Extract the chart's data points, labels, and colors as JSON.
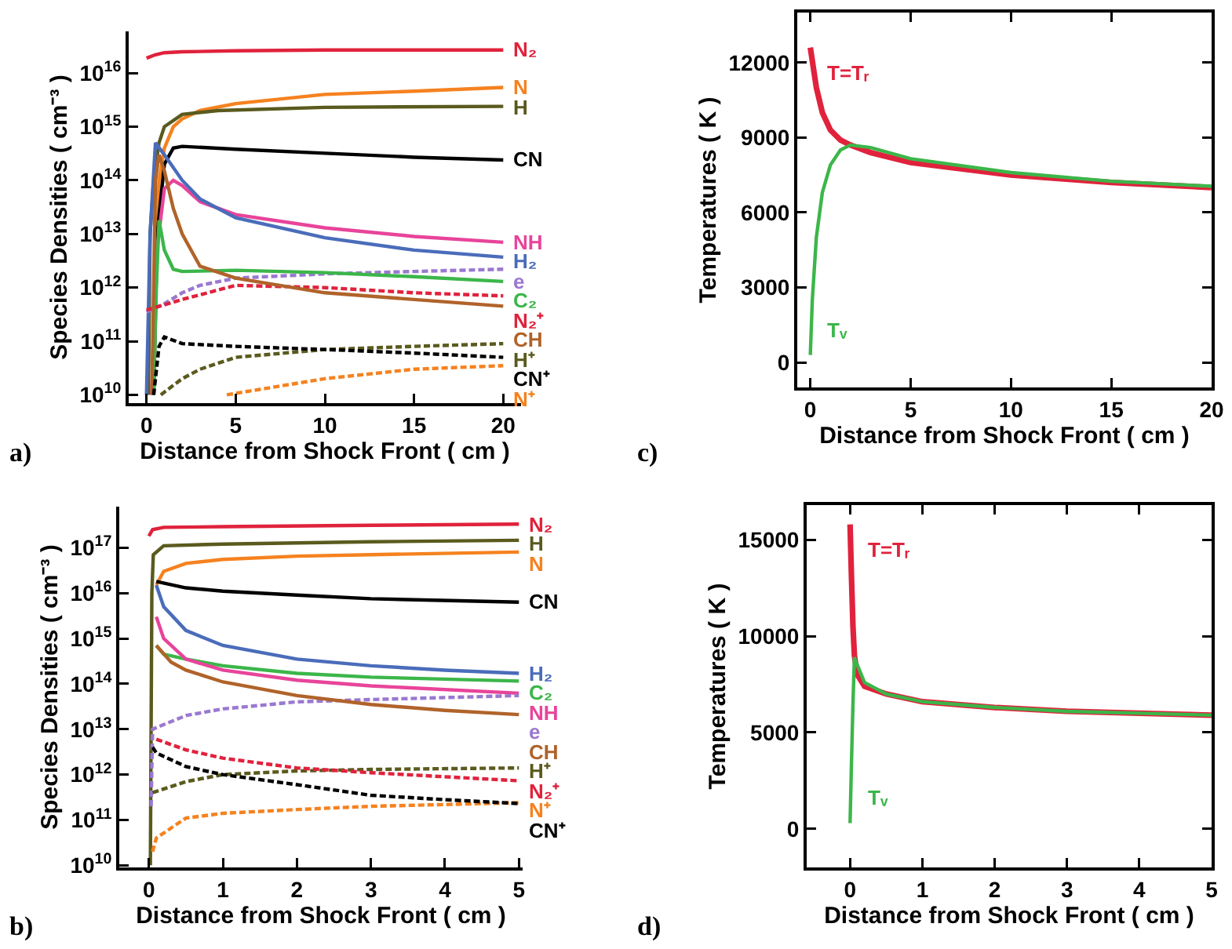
{
  "chart_data": [
    {
      "type": "line",
      "log": true,
      "marker": "none",
      "legend": "right",
      "xlabel": "Distance from Shock Front ( cm )",
      "ylabel": "Species Densities ( cm⁻³ )",
      "annotations": [
        "a)"
      ],
      "xlim": [
        -1,
        21
      ],
      "xticks": [
        0,
        5,
        10,
        15,
        20
      ],
      "ylim": [
        7000000000.0,
        6e+16
      ],
      "yticks": [
        {
          "value": 10000000000.0,
          "label": "10$^{10}$"
        },
        {
          "value": 100000000000.0,
          "label": "10$^{11}$"
        },
        {
          "value": 1000000000000.0,
          "label": "10$^{12}$"
        },
        {
          "value": 10000000000000.0,
          "label": "10$^{13}$"
        },
        {
          "value": 100000000000000.0,
          "label": "10$^{14}$"
        },
        {
          "value": 1000000000000000.0,
          "label": "10$^{15}$"
        },
        {
          "value": 1e+16,
          "label": "10$^{16}$"
        }
      ],
      "series": [
        {
          "name": "N₂",
          "color": "#e0223c",
          "line_style": "solid",
          "x": [
            0,
            0.5,
            1,
            2,
            5,
            10,
            20
          ],
          "values": [
            1.9e+16,
            2.2e+16,
            2.4e+16,
            2.5e+16,
            2.6e+16,
            2.7e+16,
            2.7e+16
          ]
        },
        {
          "name": "N",
          "color": "#f5821f",
          "line_style": "solid",
          "x": [
            0.3,
            0.5,
            0.7,
            1,
            1.5,
            2,
            3,
            5,
            10,
            15,
            20
          ],
          "values": [
            10000000000.0,
            1000000000000.0,
            100000000000000.0,
            400000000000000.0,
            1000000000000000.0,
            1400000000000000.0,
            2000000000000000.0,
            2700000000000000.0,
            4000000000000000.0,
            4600000000000000.0,
            5400000000000000.0
          ]
        },
        {
          "name": "H",
          "color": "#5a5a1e",
          "line_style": "solid",
          "x": [
            0.1,
            0.2,
            0.4,
            0.7,
            1,
            2,
            4,
            10,
            20
          ],
          "values": [
            10000000000.0,
            10000000000000.0,
            100000000000000.0,
            500000000000000.0,
            1000000000000000.0,
            1700000000000000.0,
            2000000000000000.0,
            2300000000000000.0,
            2400000000000000.0
          ]
        },
        {
          "name": "CN",
          "color": "#000000",
          "line_style": "solid",
          "x": [
            0.4,
            0.6,
            1,
            1.5,
            2,
            5,
            10,
            15,
            20
          ],
          "values": [
            10000000000.0,
            10000000000000.0,
            200000000000000.0,
            400000000000000.0,
            430000000000000.0,
            380000000000000.0,
            320000000000000.0,
            270000000000000.0,
            240000000000000.0
          ]
        },
        {
          "name": "NH",
          "color": "#e8449a",
          "line_style": "solid",
          "x": [
            0.3,
            0.5,
            1,
            1.5,
            2,
            3,
            5,
            10,
            15,
            20
          ],
          "values": [
            10000000000.0,
            3000000000000.0,
            70000000000000.0,
            100000000000000.0,
            80000000000000.0,
            40000000000000.0,
            23000000000000.0,
            13000000000000.0,
            9000000000000.0,
            7000000000000.0
          ]
        },
        {
          "name": "H₂",
          "color": "#4a6cba",
          "line_style": "solid",
          "x": [
            0,
            0.2,
            0.5,
            1,
            2,
            3,
            5,
            10,
            15,
            20
          ],
          "values": [
            10000000000.0,
            10000000000000.0,
            500000000000000.0,
            300000000000000.0,
            100000000000000.0,
            45000000000000.0,
            20000000000000.0,
            8500000000000.0,
            5000000000000.0,
            3700000000000.0
          ]
        },
        {
          "name": "e",
          "color": "#9a78d0",
          "line_style": "dashed",
          "x": [
            0,
            1,
            2,
            3,
            5,
            10,
            15,
            20
          ],
          "values": [
            350000000000.0,
            500000000000.0,
            800000000000.0,
            1100000000000.0,
            1500000000000.0,
            1800000000000.0,
            2000000000000.0,
            2200000000000.0
          ]
        },
        {
          "name": "C₂",
          "color": "#3cb64a",
          "line_style": "solid",
          "x": [
            0.4,
            0.55,
            0.7,
            1,
            1.5,
            2,
            5,
            10,
            15,
            20
          ],
          "values": [
            10000000000.0,
            1000000000000.0,
            18000000000000.0,
            5000000000000.0,
            2200000000000.0,
            2000000000000.0,
            2100000000000.0,
            1900000000000.0,
            1600000000000.0,
            1300000000000.0
          ]
        },
        {
          "name": "N₂⁺",
          "color": "#e0223c",
          "line_style": "dashed",
          "x": [
            0,
            2,
            5,
            10,
            15,
            20
          ],
          "values": [
            380000000000.0,
            600000000000.0,
            1100000000000.0,
            1000000000000.0,
            800000000000.0,
            700000000000.0
          ]
        },
        {
          "name": "CH",
          "color": "#b0632a",
          "line_style": "solid",
          "x": [
            0.3,
            0.5,
            0.7,
            1,
            1.5,
            2,
            3,
            5,
            10,
            15,
            20
          ],
          "values": [
            10000000000.0,
            100000000000000.0,
            300000000000000.0,
            150000000000000.0,
            30000000000000.0,
            10000000000000.0,
            2500000000000.0,
            1500000000000.0,
            800000000000.0,
            600000000000.0,
            450000000000.0
          ]
        },
        {
          "name": "H⁺",
          "color": "#5a5a1e",
          "line_style": "dashed",
          "x": [
            0.8,
            2,
            3,
            5,
            10,
            15,
            20
          ],
          "values": [
            10000000000.0,
            20000000000.0,
            30000000000.0,
            50000000000.0,
            70000000000.0,
            80000000000.0,
            90000000000.0
          ]
        },
        {
          "name": "CN⁺",
          "color": "#000000",
          "line_style": "dashed",
          "x": [
            0.4,
            0.7,
            1,
            2,
            5,
            10,
            15,
            20
          ],
          "values": [
            10000000000.0,
            80000000000.0,
            120000000000.0,
            90000000000.0,
            80000000000.0,
            70000000000.0,
            60000000000.0,
            50000000000.0
          ]
        },
        {
          "name": "N⁺",
          "color": "#f5821f",
          "line_style": "dashed",
          "x": [
            4.5,
            10,
            15,
            20
          ],
          "values": [
            10000000000.0,
            20000000000.0,
            30000000000.0,
            35000000000.0
          ]
        }
      ]
    },
    {
      "type": "line",
      "log": true,
      "marker": "none",
      "legend": "right",
      "xlabel": "Distance from Shock Front ( cm )",
      "ylabel": "Species Densities ( cm⁻³ )",
      "annotations": [
        "b)"
      ],
      "xlim": [
        -0.4,
        5.05
      ],
      "xticks": [
        0,
        1,
        2,
        3,
        4,
        5
      ],
      "ylim": [
        9000000000.0,
        8e+17
      ],
      "yticks": [
        {
          "value": 10000000000.0,
          "label": "10$^{10}$"
        },
        {
          "value": 100000000000.0,
          "label": "10$^{11}$"
        },
        {
          "value": 1000000000000.0,
          "label": "10$^{12}$"
        },
        {
          "value": 10000000000000.0,
          "label": "10$^{13}$"
        },
        {
          "value": 100000000000000.0,
          "label": "10$^{14}$"
        },
        {
          "value": 1000000000000000.0,
          "label": "10$^{15}$"
        },
        {
          "value": 1e+16,
          "label": "10$^{16}$"
        },
        {
          "value": 1e+17,
          "label": "10$^{17}$"
        }
      ],
      "series": [
        {
          "name": "N₂",
          "color": "#e0223c",
          "line_style": "solid",
          "x": [
            0,
            0.05,
            0.2,
            1,
            3,
            5
          ],
          "values": [
            1.8e+17,
            2.5e+17,
            2.8e+17,
            2.9e+17,
            3.1e+17,
            3.3e+17
          ]
        },
        {
          "name": "H",
          "color": "#5a5a1e",
          "line_style": "solid",
          "x": [
            0.02,
            0.04,
            0.06,
            0.2,
            1,
            3,
            5
          ],
          "values": [
            10000000000.0,
            1e+16,
            7e+16,
            1.1e+17,
            1.2e+17,
            1.35e+17,
            1.45e+17
          ]
        },
        {
          "name": "N",
          "color": "#f5821f",
          "line_style": "solid",
          "x": [
            0.1,
            0.2,
            0.5,
            1,
            2,
            3,
            5
          ],
          "values": [
            1.5e+16,
            3e+16,
            4.5e+16,
            5.5e+16,
            6.5e+16,
            7e+16,
            8e+16
          ]
        },
        {
          "name": "CN",
          "color": "#000000",
          "line_style": "solid",
          "x": [
            0.1,
            0.5,
            1,
            2,
            3,
            5
          ],
          "values": [
            1.8e+16,
            1.3e+16,
            1.1e+16,
            9000000000000000.0,
            7500000000000000.0,
            6300000000000000.0
          ]
        },
        {
          "name": "H₂",
          "color": "#4a6cba",
          "line_style": "solid",
          "x": [
            0.1,
            0.2,
            0.5,
            1,
            2,
            3,
            4,
            5
          ],
          "values": [
            1.5e+16,
            5000000000000000.0,
            1500000000000000.0,
            700000000000000.0,
            350000000000000.0,
            250000000000000.0,
            200000000000000.0,
            170000000000000.0
          ]
        },
        {
          "name": "C₂",
          "color": "#3cb64a",
          "line_style": "solid",
          "x": [
            0.1,
            0.2,
            0.5,
            1,
            2,
            3,
            5
          ],
          "values": [
            700000000000000.0,
            450000000000000.0,
            350000000000000.0,
            250000000000000.0,
            170000000000000.0,
            140000000000000.0,
            115000000000000.0
          ]
        },
        {
          "name": "NH",
          "color": "#e8449a",
          "line_style": "solid",
          "x": [
            0.1,
            0.2,
            0.5,
            1,
            2,
            3,
            5
          ],
          "values": [
            3000000000000000.0,
            1000000000000000.0,
            350000000000000.0,
            200000000000000.0,
            120000000000000.0,
            90000000000000.0,
            62000000000000.0
          ]
        },
        {
          "name": "e",
          "color": "#9a78d0",
          "line_style": "dashed",
          "x": [
            0.03,
            0.05,
            0.5,
            1,
            2,
            3,
            5
          ],
          "values": [
            200000000000.0,
            10000000000000.0,
            20000000000000.0,
            28000000000000.0,
            40000000000000.0,
            45000000000000.0,
            55000000000000.0
          ]
        },
        {
          "name": "CH",
          "color": "#b0632a",
          "line_style": "solid",
          "x": [
            0.1,
            0.3,
            0.5,
            1,
            2,
            3,
            4,
            5
          ],
          "values": [
            700000000000000.0,
            300000000000000.0,
            200000000000000.0,
            110000000000000.0,
            55000000000000.0,
            35000000000000.0,
            26000000000000.0,
            21000000000000.0
          ]
        },
        {
          "name": "H⁺",
          "color": "#5a5a1e",
          "line_style": "dashed",
          "x": [
            0.05,
            0.5,
            1,
            2,
            3,
            5
          ],
          "values": [
            400000000000.0,
            700000000000.0,
            1000000000000.0,
            1200000000000.0,
            1300000000000.0,
            1400000000000.0
          ]
        },
        {
          "name": "N₂⁺",
          "color": "#e0223c",
          "line_style": "dashed",
          "x": [
            0.1,
            0.5,
            1,
            2,
            3,
            5
          ],
          "values": [
            6000000000000.0,
            3500000000000.0,
            2300000000000.0,
            1400000000000.0,
            1100000000000.0,
            730000000000.0
          ]
        },
        {
          "name": "N⁺",
          "color": "#f5821f",
          "line_style": "dashed",
          "x": [
            0.05,
            0.1,
            0.5,
            1,
            2,
            3,
            5
          ],
          "values": [
            20000000000.0,
            40000000000.0,
            110000000000.0,
            140000000000.0,
            170000000000.0,
            200000000000.0,
            240000000000.0
          ]
        },
        {
          "name": "CN⁺",
          "color": "#000000",
          "line_style": "dashed",
          "x": [
            0.05,
            0.1,
            0.5,
            1,
            2,
            3,
            4,
            5
          ],
          "values": [
            4000000000000.0,
            3000000000000.0,
            1500000000000.0,
            1000000000000.0,
            600000000000.0,
            350000000000.0,
            280000000000.0,
            230000000000.0
          ]
        }
      ]
    },
    {
      "type": "line",
      "marker": "none",
      "xlabel": "Distance from Shock Front ( cm )",
      "ylabel": "Temperatures ( K )",
      "annotations": [
        "c)"
      ],
      "xlim": [
        -0.65,
        20
      ],
      "xticks": [
        0,
        5,
        10,
        15,
        20
      ],
      "ylim": [
        -1000,
        14000
      ],
      "yticks": [
        0,
        3000,
        6000,
        9000,
        12000
      ],
      "series": [
        {
          "name": "T=Tᵣ",
          "color": "#e0223c",
          "line_style": "solid",
          "x": [
            0,
            0.3,
            0.6,
            1,
            1.5,
            2,
            3,
            5,
            10,
            15,
            20
          ],
          "values": [
            12600,
            11000,
            10000,
            9300,
            8900,
            8700,
            8400,
            8000,
            7500,
            7200,
            7000
          ]
        },
        {
          "name": "Tᵥ",
          "color": "#3cb64a",
          "line_style": "solid",
          "x": [
            0,
            0.1,
            0.3,
            0.6,
            1,
            1.5,
            2,
            3,
            5,
            10,
            15,
            20
          ],
          "values": [
            300,
            2500,
            5000,
            6800,
            7900,
            8500,
            8700,
            8600,
            8150,
            7600,
            7250,
            7050
          ]
        }
      ]
    },
    {
      "type": "line",
      "marker": "none",
      "xlabel": "Distance from Shock Front ( cm )",
      "ylabel": "Temperatures ( K )",
      "annotations": [
        "d)"
      ],
      "xlim": [
        -0.6,
        5
      ],
      "xticks": [
        0,
        1,
        2,
        3,
        4,
        5
      ],
      "ylim": [
        -2000,
        16800
      ],
      "yticks": [
        0,
        5000,
        10000,
        15000
      ],
      "series": [
        {
          "name": "T=Tᵣ",
          "color": "#e0223c",
          "line_style": "solid",
          "x": [
            0,
            0.02,
            0.04,
            0.06,
            0.1,
            0.2,
            0.5,
            1,
            2,
            3,
            4,
            5
          ],
          "values": [
            15800,
            13000,
            10500,
            9000,
            8000,
            7400,
            7000,
            6600,
            6300,
            6100,
            6000,
            5900
          ]
        },
        {
          "name": "Tᵥ",
          "color": "#3cb64a",
          "line_style": "solid",
          "x": [
            0,
            0.02,
            0.04,
            0.06,
            0.1,
            0.2,
            0.5,
            1,
            2,
            3,
            4,
            5
          ],
          "values": [
            300,
            3500,
            6500,
            8900,
            8500,
            7600,
            7000,
            6600,
            6300,
            6100,
            6000,
            5900
          ]
        }
      ]
    }
  ]
}
